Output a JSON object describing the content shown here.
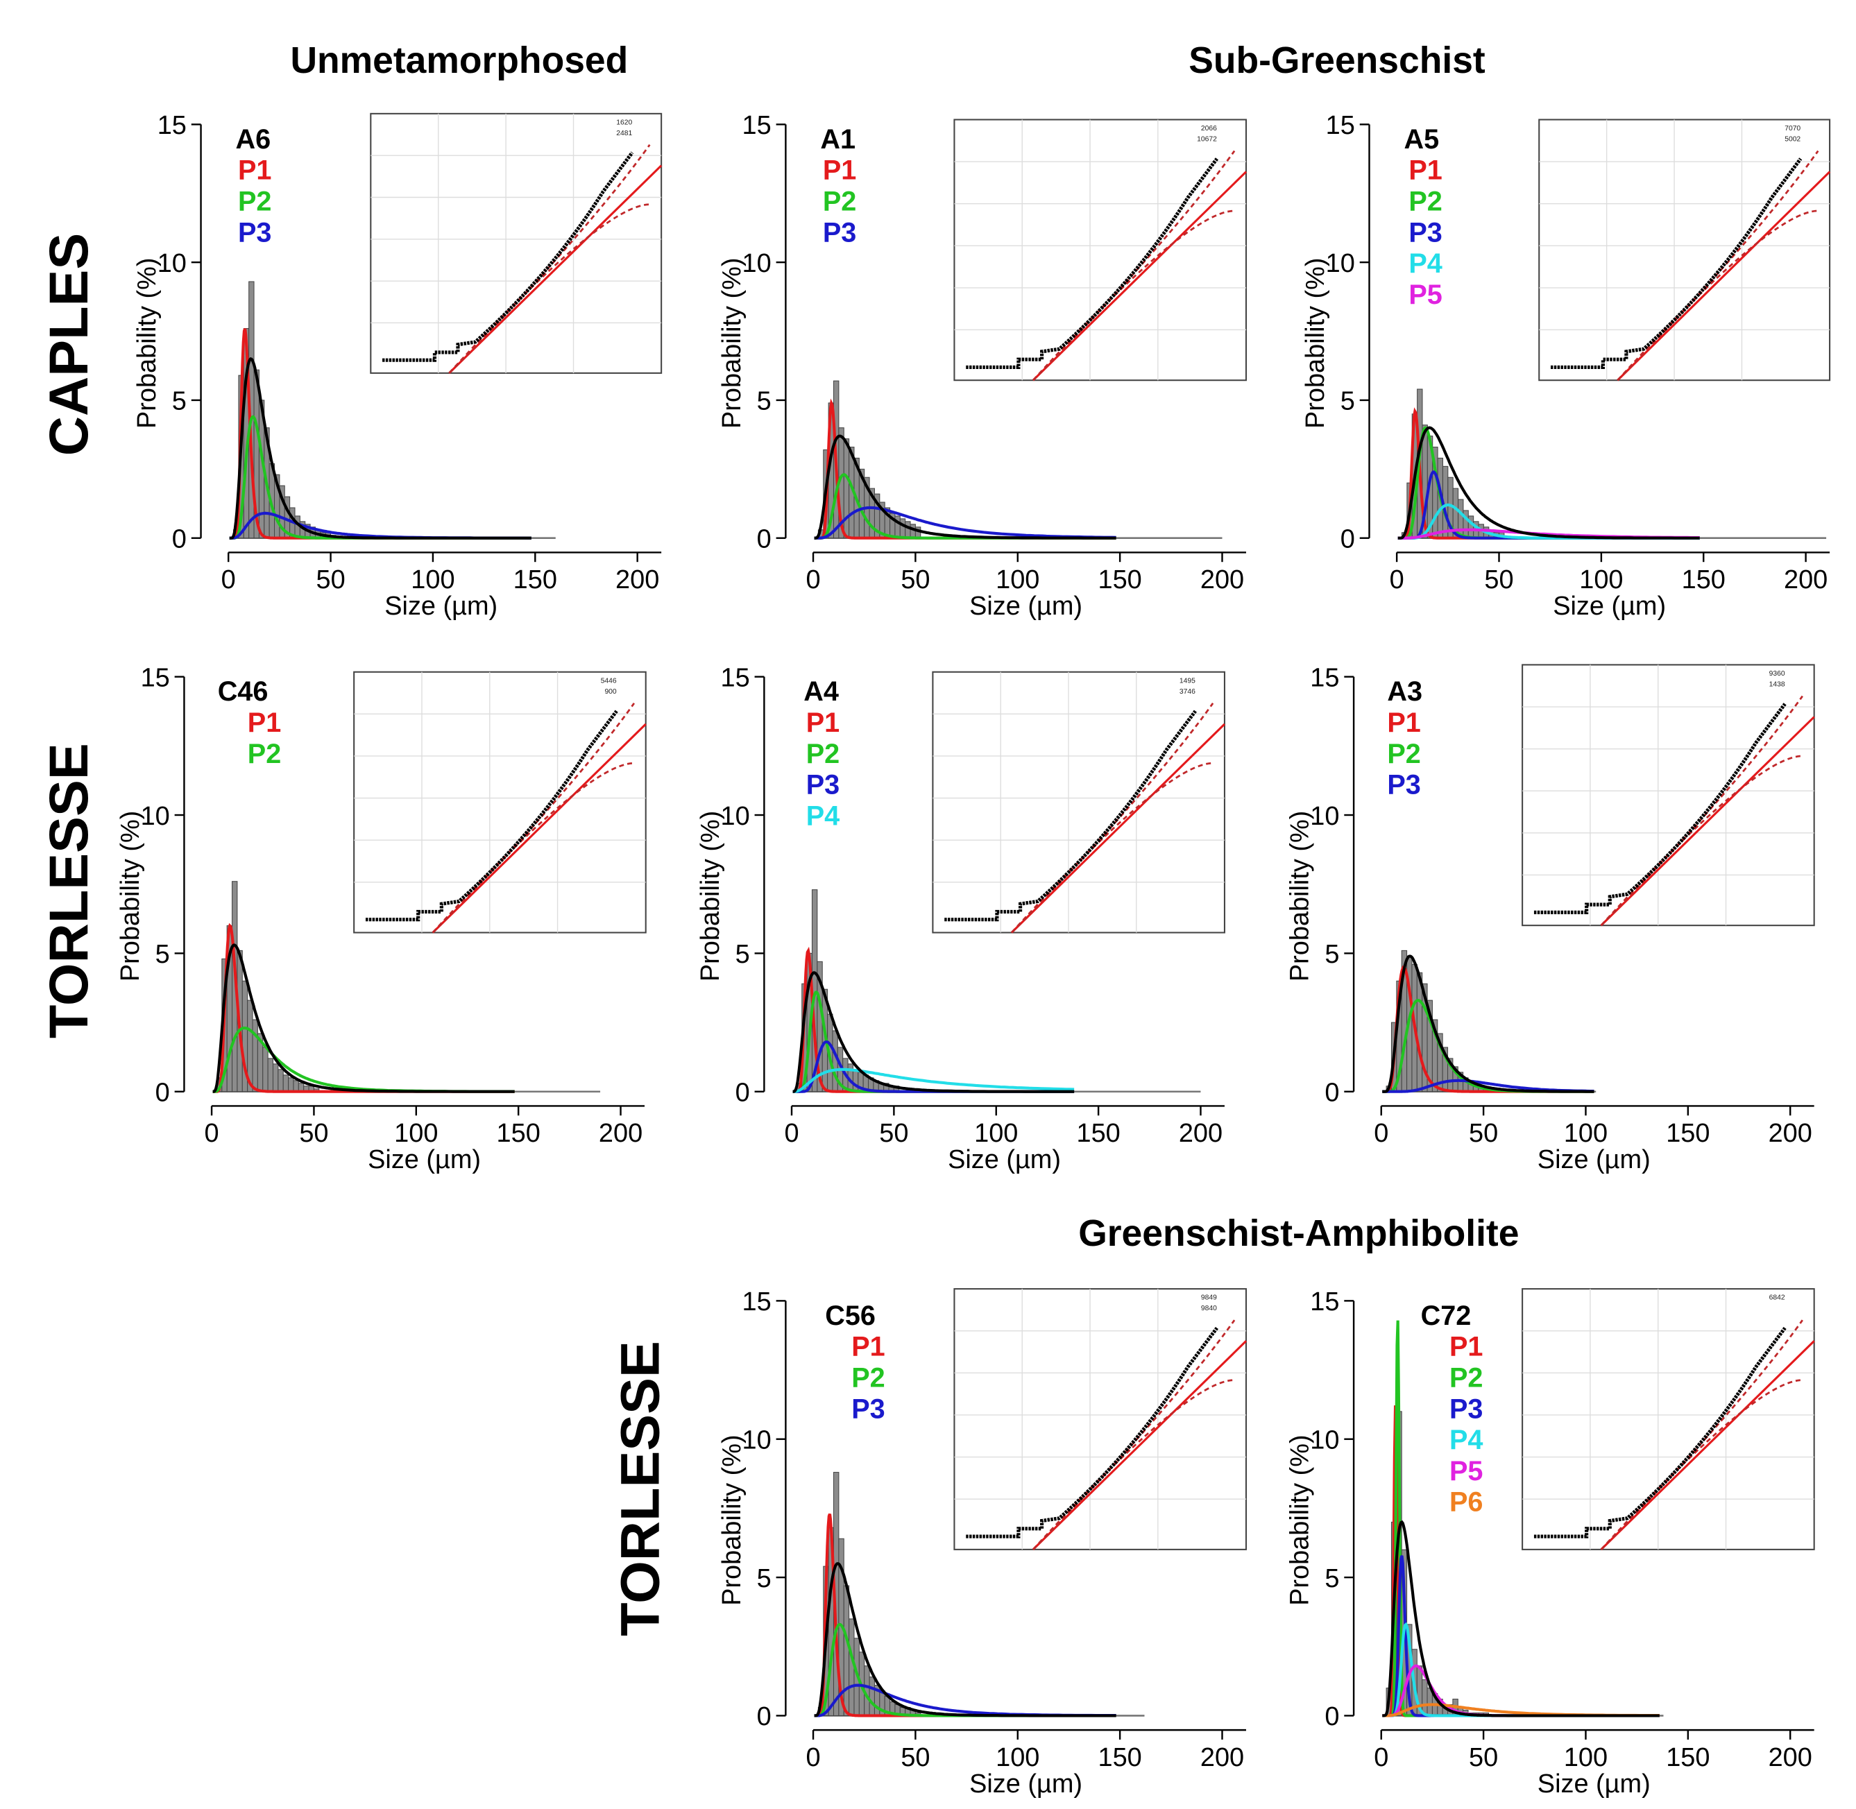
{
  "headers": {
    "col1": "Unmetamorphosed",
    "col2": "Sub-Greenschist",
    "row3": "Greenschist-Amphibolite"
  },
  "row_labels": {
    "caples": "CAPLES",
    "torlesse1": "TORLESSE",
    "torlesse2": "TORLESSE"
  },
  "colors": {
    "P1": "#e41a1c",
    "P2": "#22c422",
    "P3": "#1a1acc",
    "P4": "#22dde8",
    "P5": "#e022e0",
    "P6": "#f08020",
    "total": "#000000",
    "hist": "#8c8c8c"
  },
  "chart_data": [
    {
      "type": "bar+line",
      "sample": "A6",
      "xlabel": "Size (µm)",
      "ylabel": "Probability (%)",
      "xlim": [
        0,
        200
      ],
      "ylim": [
        0,
        15
      ],
      "xticks": [
        "0",
        "50",
        "100",
        "150",
        "200"
      ],
      "yticks": [
        "0",
        "5",
        "10",
        "15"
      ],
      "hist_bin_start": 2.5,
      "hist_bin_width": 2.5,
      "hist": [
        0.3,
        5.9,
        7.6,
        9.3,
        6.1,
        5.0,
        4.0,
        2.7,
        2.3,
        1.9,
        1.5,
        1.1,
        0.8,
        0.6,
        0.5,
        0.4,
        0.3,
        0.2,
        0.2,
        0.1
      ],
      "hist_tail_max": 160,
      "fit_max": 150,
      "total": {
        "mode": 11,
        "peak": 6.5,
        "logsd": 0.5
      },
      "components": [
        {
          "name": "P1",
          "mode": 8,
          "peak": 7.6,
          "logsd": 0.25
        },
        {
          "name": "P2",
          "mode": 12,
          "peak": 4.4,
          "logsd": 0.35
        },
        {
          "name": "P3",
          "mode": 18,
          "peak": 0.9,
          "logsd": 0.6
        }
      ],
      "inset_labels": [
        "1620",
        "2481"
      ]
    },
    {
      "type": "bar+line",
      "sample": "A1",
      "xlabel": "Size (µm)",
      "ylabel": "Probability (%)",
      "xlim": [
        0,
        200
      ],
      "ylim": [
        0,
        15
      ],
      "xticks": [
        "0",
        "50",
        "100",
        "150",
        "200"
      ],
      "yticks": [
        "0",
        "5",
        "10",
        "15"
      ],
      "hist_bin_start": 2.5,
      "hist_bin_width": 2.5,
      "hist": [
        0.3,
        3.2,
        4.9,
        5.7,
        4.0,
        3.6,
        3.3,
        2.9,
        2.5,
        2.2,
        1.8,
        1.6,
        1.3,
        1.1,
        0.9,
        0.8,
        0.7,
        0.6,
        0.5,
        0.4
      ],
      "hist_tail_max": 200,
      "fit_max": 150,
      "total": {
        "mode": 13,
        "peak": 3.7,
        "logsd": 0.6
      },
      "components": [
        {
          "name": "P1",
          "mode": 9,
          "peak": 4.9,
          "logsd": 0.2
        },
        {
          "name": "P2",
          "mode": 15,
          "peak": 2.3,
          "logsd": 0.35
        },
        {
          "name": "P3",
          "mode": 28,
          "peak": 1.1,
          "logsd": 0.6
        }
      ],
      "inset_labels": [
        "2066",
        "10672"
      ]
    },
    {
      "type": "bar+line",
      "sample": "A5",
      "xlabel": "Size (µm)",
      "ylabel": "Probability (%)",
      "xlim": [
        0,
        200
      ],
      "ylim": [
        0,
        15
      ],
      "xticks": [
        "0",
        "50",
        "100",
        "150",
        "200"
      ],
      "yticks": [
        "0",
        "5",
        "10",
        "15"
      ],
      "hist_bin_start": 2.5,
      "hist_bin_width": 2.5,
      "hist": [
        0.2,
        2.0,
        4.5,
        5.4,
        4.1,
        3.7,
        3.3,
        2.9,
        2.6,
        2.2,
        1.8,
        1.4,
        1.0,
        0.8,
        0.6,
        0.5,
        0.4,
        0.3,
        0.2,
        0.2
      ],
      "hist_tail_max": 210,
      "fit_max": 150,
      "total": {
        "mode": 16,
        "peak": 4.0,
        "logsd": 0.55
      },
      "components": [
        {
          "name": "P1",
          "mode": 9,
          "peak": 4.6,
          "logsd": 0.2
        },
        {
          "name": "P2",
          "mode": 14,
          "peak": 4.0,
          "logsd": 0.3
        },
        {
          "name": "P3",
          "mode": 18,
          "peak": 2.4,
          "logsd": 0.2
        },
        {
          "name": "P4",
          "mode": 25,
          "peak": 1.2,
          "logsd": 0.3
        },
        {
          "name": "P5",
          "mode": 35,
          "peak": 0.3,
          "logsd": 0.6
        }
      ],
      "inset_labels": [
        "7070",
        "5002"
      ]
    },
    {
      "type": "bar+line",
      "sample": "C46",
      "xlabel": "Size (µm)",
      "ylabel": "Probability (%)",
      "xlim": [
        0,
        200
      ],
      "ylim": [
        0,
        15
      ],
      "xticks": [
        "0",
        "50",
        "100",
        "150",
        "200"
      ],
      "yticks": [
        "0",
        "5",
        "10",
        "15"
      ],
      "hist_bin_start": 2.5,
      "hist_bin_width": 2.5,
      "hist": [
        0.5,
        4.8,
        6.0,
        7.6,
        5.1,
        4.0,
        3.3,
        2.6,
        2.1,
        1.6,
        1.2,
        1.0,
        0.8,
        0.6,
        0.5,
        0.4,
        0.3,
        0.2,
        0.2,
        0.1
      ],
      "hist_tail_max": 190,
      "fit_max": 150,
      "total": {
        "mode": 11,
        "peak": 5.3,
        "logsd": 0.6
      },
      "components": [
        {
          "name": "P1",
          "mode": 9,
          "peak": 6.0,
          "logsd": 0.3
        },
        {
          "name": "P2",
          "mode": 16,
          "peak": 2.3,
          "logsd": 0.6
        }
      ],
      "inset_labels": [
        "5446",
        "900"
      ]
    },
    {
      "type": "bar+line",
      "sample": "A4",
      "xlabel": "Size (µm)",
      "ylabel": "Probability (%)",
      "xlim": [
        0,
        200
      ],
      "ylim": [
        0,
        15
      ],
      "xticks": [
        "0",
        "50",
        "100",
        "150",
        "200"
      ],
      "yticks": [
        "0",
        "5",
        "10",
        "15"
      ],
      "hist_bin_start": 2.5,
      "hist_bin_width": 2.5,
      "hist": [
        0.3,
        3.9,
        5.0,
        7.3,
        4.7,
        3.7,
        2.8,
        2.2,
        1.6,
        1.2,
        1.0,
        0.8,
        0.7,
        0.6,
        0.5,
        0.4,
        0.3,
        0.3,
        0.2,
        0.2
      ],
      "hist_tail_max": 200,
      "fit_max": 140,
      "total": {
        "mode": 11,
        "peak": 4.3,
        "logsd": 0.6
      },
      "components": [
        {
          "name": "P1",
          "mode": 8,
          "peak": 5.1,
          "logsd": 0.25
        },
        {
          "name": "P2",
          "mode": 12,
          "peak": 3.6,
          "logsd": 0.3
        },
        {
          "name": "P3",
          "mode": 17,
          "peak": 1.8,
          "logsd": 0.3
        },
        {
          "name": "P4",
          "mode": 25,
          "peak": 0.8,
          "logsd": 0.8
        }
      ],
      "inset_labels": [
        "1495",
        "3746"
      ]
    },
    {
      "type": "bar+line",
      "sample": "A3",
      "xlabel": "Size (µm)",
      "ylabel": "Probability (%)",
      "xlim": [
        0,
        200
      ],
      "ylim": [
        0,
        15
      ],
      "xticks": [
        "0",
        "50",
        "100",
        "150",
        "200"
      ],
      "yticks": [
        "0",
        "5",
        "10",
        "15"
      ],
      "hist_bin_start": 2.5,
      "hist_bin_width": 2.5,
      "hist": [
        0.2,
        2.5,
        4.0,
        5.1,
        4.9,
        4.6,
        4.3,
        3.9,
        3.3,
        2.6,
        2.1,
        1.6,
        1.2,
        0.9,
        0.7,
        0.5,
        0.4,
        0.3,
        0.2,
        0.1
      ],
      "hist_tail_max": 105,
      "fit_max": 105,
      "total": {
        "mode": 14,
        "peak": 4.9,
        "logsd": 0.5
      },
      "components": [
        {
          "name": "P1",
          "mode": 11,
          "peak": 4.5,
          "logsd": 0.35
        },
        {
          "name": "P2",
          "mode": 18,
          "peak": 3.3,
          "logsd": 0.4
        },
        {
          "name": "P3",
          "mode": 38,
          "peak": 0.4,
          "logsd": 0.4
        }
      ],
      "inset_labels": [
        "9360",
        "1438"
      ]
    },
    {
      "type": "bar+line",
      "sample": "C56",
      "xlabel": "Size (µm)",
      "ylabel": "Probability (%)",
      "xlim": [
        0,
        200
      ],
      "ylim": [
        0,
        15
      ],
      "xticks": [
        "0",
        "50",
        "100",
        "150",
        "200"
      ],
      "yticks": [
        "0",
        "5",
        "10",
        "15"
      ],
      "hist_bin_start": 2.5,
      "hist_bin_width": 2.5,
      "hist": [
        0.3,
        5.4,
        6.8,
        8.8,
        6.4,
        4.7,
        3.5,
        2.8,
        2.3,
        1.8,
        1.4,
        1.1,
        0.9,
        0.7,
        0.5,
        0.4,
        0.3,
        0.3,
        0.2,
        0.1
      ],
      "hist_tail_max": 162,
      "fit_max": 150,
      "total": {
        "mode": 12,
        "peak": 5.5,
        "logsd": 0.55
      },
      "components": [
        {
          "name": "P1",
          "mode": 8,
          "peak": 7.3,
          "logsd": 0.25
        },
        {
          "name": "P2",
          "mode": 13,
          "peak": 3.3,
          "logsd": 0.4
        },
        {
          "name": "P3",
          "mode": 22,
          "peak": 1.1,
          "logsd": 0.6
        }
      ],
      "inset_labels": [
        "9849",
        "9840"
      ]
    },
    {
      "type": "bar+line",
      "sample": "C72",
      "xlabel": "Size (µm)",
      "ylabel": "Probability (%)",
      "xlim": [
        0,
        200
      ],
      "ylim": [
        0,
        15
      ],
      "xticks": [
        "0",
        "50",
        "100",
        "150",
        "200"
      ],
      "yticks": [
        "0",
        "5",
        "10",
        "15"
      ],
      "hist_bin_start": 2.5,
      "hist_bin_width": 2.5,
      "hist": [
        1.0,
        7.0,
        11.0,
        6.0,
        3.3,
        2.4,
        1.8,
        1.3,
        1.0,
        0.8,
        0.6,
        0.4,
        0.4,
        0.6,
        0.3,
        0.2,
        0.1,
        0.1,
        0.1,
        0.1
      ],
      "hist_tail_max": 138,
      "fit_max": 138,
      "total": {
        "mode": 10,
        "peak": 7.0,
        "logsd": 0.45
      },
      "components": [
        {
          "name": "P1",
          "mode": 7,
          "peak": 11.3,
          "logsd": 0.12
        },
        {
          "name": "P2",
          "mode": 8,
          "peak": 14.4,
          "logsd": 0.1
        },
        {
          "name": "P3",
          "mode": 10,
          "peak": 5.8,
          "logsd": 0.15
        },
        {
          "name": "P4",
          "mode": 12,
          "peak": 3.3,
          "logsd": 0.2
        },
        {
          "name": "P5",
          "mode": 17,
          "peak": 1.8,
          "logsd": 0.35
        },
        {
          "name": "P6",
          "mode": 25,
          "peak": 0.4,
          "logsd": 0.6
        }
      ],
      "inset_labels": [
        "6842"
      ]
    }
  ]
}
